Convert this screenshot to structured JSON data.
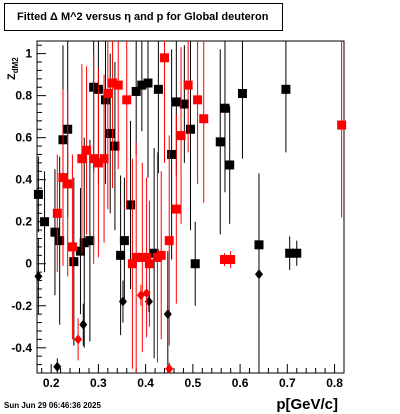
{
  "title": "Fitted Δ M^2 versus η and p for Global deuteron",
  "footer": "Sun Jun 29 06:46:36 2025",
  "chart_data": {
    "type": "scatter",
    "title": "Fitted Δ M^2 versus η and p for Global deuteron",
    "xlabel": "p[GeV/c]",
    "ylabel_main": "Z",
    "ylabel_sub": "dM2",
    "xlim": [
      0.17,
      0.82
    ],
    "ylim": [
      -0.52,
      1.06
    ],
    "xticks": [
      0.2,
      0.3,
      0.4,
      0.5,
      0.6,
      0.7,
      0.8
    ],
    "yticks": [
      -0.4,
      -0.2,
      0,
      0.2,
      0.4,
      0.6,
      0.8,
      1
    ],
    "grid": false,
    "legend": "none",
    "series": [
      {
        "marker": "square",
        "color": "#000000",
        "points": [
          {
            "x": 0.173,
            "y": 0.33,
            "err": 0.18
          },
          {
            "x": 0.186,
            "y": 0.2,
            "err": 0.24
          },
          {
            "x": 0.208,
            "y": 0.15,
            "err": 0.3
          },
          {
            "x": 0.218,
            "y": 0.11,
            "err": 0.4
          },
          {
            "x": 0.225,
            "y": 0.59,
            "err": 0.45
          },
          {
            "x": 0.235,
            "y": 0.64,
            "err": 0.42
          },
          {
            "x": 0.248,
            "y": 0.01,
            "err": 0.4
          },
          {
            "x": 0.262,
            "y": 0.06,
            "err": 0.3
          },
          {
            "x": 0.27,
            "y": 0.1,
            "err": 0.5
          },
          {
            "x": 0.282,
            "y": 0.11,
            "err": 0.48
          },
          {
            "x": 0.29,
            "y": 0.84,
            "err": 0.4
          },
          {
            "x": 0.3,
            "y": 0.83,
            "err": 0.45
          },
          {
            "x": 0.315,
            "y": 0.78,
            "err": 0.4
          },
          {
            "x": 0.325,
            "y": 0.62,
            "err": 0.38
          },
          {
            "x": 0.335,
            "y": 0.56,
            "err": 0.4
          },
          {
            "x": 0.347,
            "y": 0.04,
            "err": 0.38
          },
          {
            "x": 0.355,
            "y": 0.11,
            "err": 0.3
          },
          {
            "x": 0.368,
            "y": 0.28,
            "err": 0.4
          },
          {
            "x": 0.38,
            "y": 0.82,
            "err": 0.3
          },
          {
            "x": 0.392,
            "y": 0.85,
            "err": 0.22
          },
          {
            "x": 0.405,
            "y": 0.86,
            "err": 0.45
          },
          {
            "x": 0.418,
            "y": 0.05,
            "err": 0.5
          },
          {
            "x": 0.427,
            "y": 0.83,
            "err": 0.4
          },
          {
            "x": 0.455,
            "y": 0.52,
            "err": 0.5
          },
          {
            "x": 0.465,
            "y": 0.77,
            "err": 0.35
          },
          {
            "x": 0.482,
            "y": 0.76,
            "err": 0.28
          },
          {
            "x": 0.495,
            "y": 0.64,
            "err": 0.48
          },
          {
            "x": 0.505,
            "y": 0.0,
            "err": 0.2
          },
          {
            "x": 0.558,
            "y": 0.58,
            "err": 0.44
          },
          {
            "x": 0.568,
            "y": 0.74,
            "err": 0.4
          },
          {
            "x": 0.578,
            "y": 0.47,
            "err": 0.28
          },
          {
            "x": 0.605,
            "y": 0.81,
            "err": 0.31
          },
          {
            "x": 0.64,
            "y": 0.09,
            "err": 0.3
          },
          {
            "x": 0.697,
            "y": 0.83,
            "err": 0.3
          },
          {
            "x": 0.705,
            "y": 0.05,
            "err": 0.08
          },
          {
            "x": 0.72,
            "y": 0.05,
            "err": 0.06
          }
        ]
      },
      {
        "marker": "square",
        "color": "#ff0000",
        "points": [
          {
            "x": 0.213,
            "y": 0.24,
            "err": 0.28
          },
          {
            "x": 0.225,
            "y": 0.41,
            "err": 0.42
          },
          {
            "x": 0.235,
            "y": 0.38,
            "err": 0.44
          },
          {
            "x": 0.245,
            "y": 0.08,
            "err": 0.44
          },
          {
            "x": 0.265,
            "y": 0.5,
            "err": 0.45
          },
          {
            "x": 0.275,
            "y": 0.54,
            "err": 0.4
          },
          {
            "x": 0.29,
            "y": 0.5,
            "err": 0.5
          },
          {
            "x": 0.3,
            "y": 0.48,
            "err": 0.45
          },
          {
            "x": 0.312,
            "y": 0.5,
            "err": 0.4
          },
          {
            "x": 0.32,
            "y": 0.81,
            "err": 0.55
          },
          {
            "x": 0.33,
            "y": 0.86,
            "err": 0.5
          },
          {
            "x": 0.342,
            "y": 0.85,
            "err": 0.4
          },
          {
            "x": 0.36,
            "y": 0.78,
            "err": 0.52
          },
          {
            "x": 0.372,
            "y": 0.0,
            "err": 0.5
          },
          {
            "x": 0.38,
            "y": 0.03,
            "err": 0.55
          },
          {
            "x": 0.393,
            "y": 0.03,
            "err": 0.45
          },
          {
            "x": 0.402,
            "y": 0.03,
            "err": 0.38
          },
          {
            "x": 0.408,
            "y": 0.0,
            "err": 0.3
          },
          {
            "x": 0.425,
            "y": 0.03,
            "err": 0.5
          },
          {
            "x": 0.433,
            "y": 0.04,
            "err": 0.4
          },
          {
            "x": 0.44,
            "y": 0.98,
            "err": 0.5
          },
          {
            "x": 0.45,
            "y": 0.11,
            "err": 0.5
          },
          {
            "x": 0.465,
            "y": 0.26,
            "err": 0.45
          },
          {
            "x": 0.475,
            "y": 0.61,
            "err": 0.42
          },
          {
            "x": 0.49,
            "y": 0.85,
            "err": 0.32
          },
          {
            "x": 0.51,
            "y": 0.78,
            "err": 0.4
          },
          {
            "x": 0.523,
            "y": 0.69,
            "err": 0.4
          },
          {
            "x": 0.567,
            "y": 0.02,
            "err": 0.03
          },
          {
            "x": 0.58,
            "y": 0.02,
            "err": 0.04
          },
          {
            "x": 0.815,
            "y": 0.66,
            "err": 0.44
          }
        ]
      },
      {
        "marker": "diamond",
        "color": "#000000",
        "points": [
          {
            "x": 0.173,
            "y": -0.06,
            "err": 0.18
          },
          {
            "x": 0.213,
            "y": -0.49,
            "err": 0.04
          },
          {
            "x": 0.268,
            "y": -0.29,
            "err": 0.1
          },
          {
            "x": 0.352,
            "y": -0.18,
            "err": 0.1
          },
          {
            "x": 0.407,
            "y": -0.18,
            "err": 0.05
          },
          {
            "x": 0.447,
            "y": -0.24,
            "err": 0.3
          },
          {
            "x": 0.64,
            "y": -0.05,
            "err": 0.48
          }
        ]
      },
      {
        "marker": "diamond",
        "color": "#ff0000",
        "points": [
          {
            "x": 0.257,
            "y": -0.36,
            "err": 0.1
          },
          {
            "x": 0.39,
            "y": -0.15,
            "err": 0.05
          },
          {
            "x": 0.402,
            "y": -0.14,
            "err": 0.05
          },
          {
            "x": 0.45,
            "y": -0.5,
            "err": 0.03
          }
        ]
      }
    ]
  }
}
